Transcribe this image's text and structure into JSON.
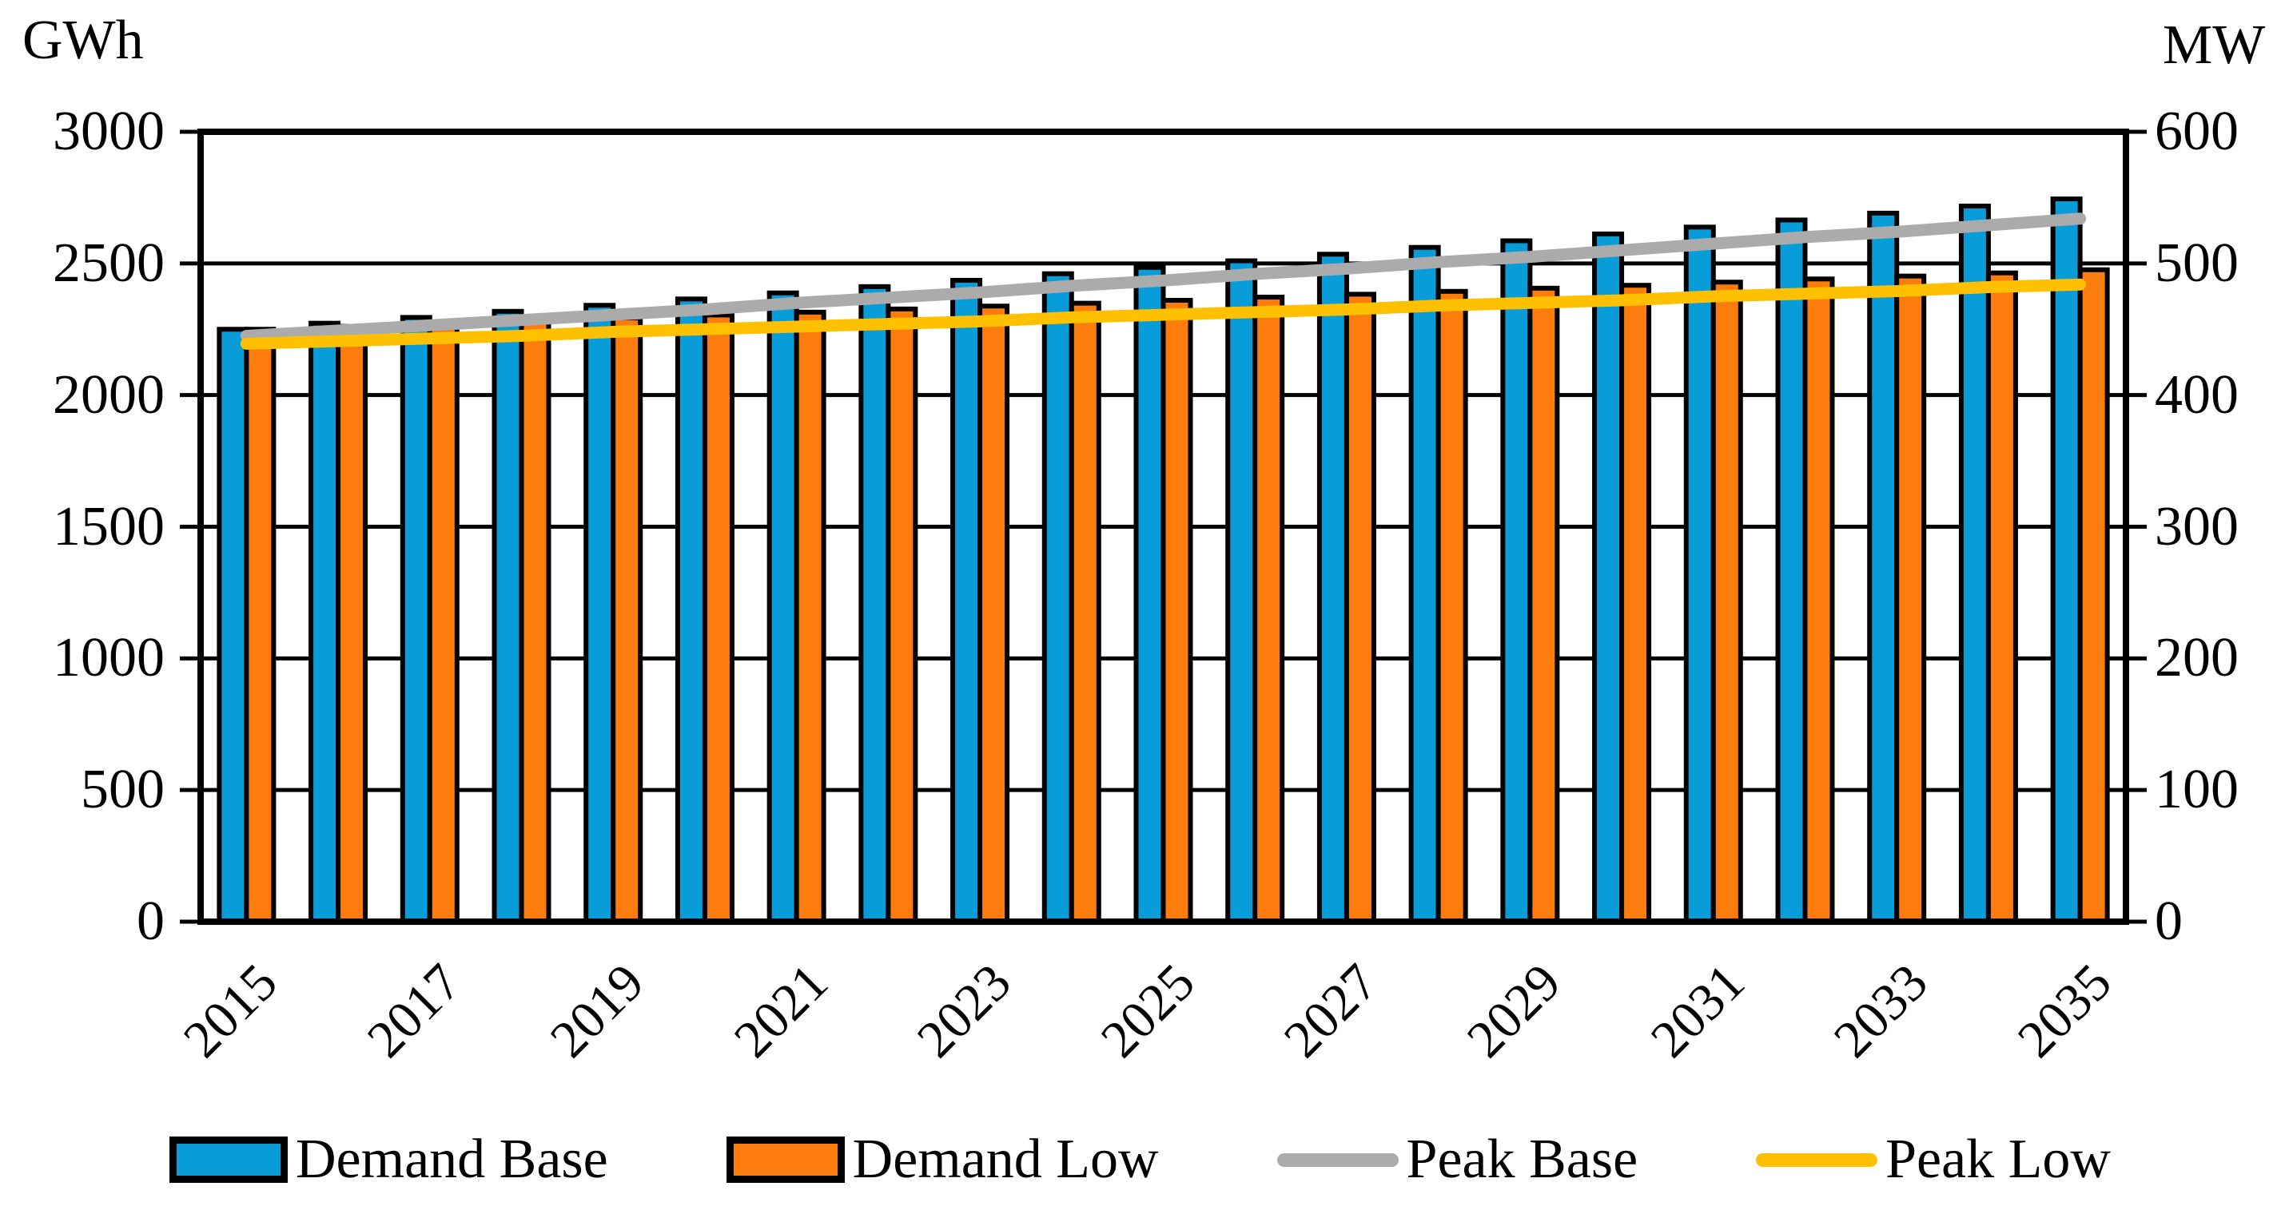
{
  "chart_data": {
    "type": "combo",
    "title": "",
    "x_years": [
      2015,
      2016,
      2017,
      2018,
      2019,
      2020,
      2021,
      2022,
      2023,
      2024,
      2025,
      2026,
      2027,
      2028,
      2029,
      2030,
      2031,
      2032,
      2033,
      2034,
      2035
    ],
    "x_tick_labels": [
      "2015",
      "2017",
      "2019",
      "2021",
      "2023",
      "2025",
      "2027",
      "2029",
      "2031",
      "2033",
      "2035"
    ],
    "left_axis": {
      "label": "GWh",
      "min": 0,
      "max": 3000,
      "tick_step": 500,
      "ticks": [
        "0",
        "500",
        "1000",
        "1500",
        "2000",
        "2500",
        "3000"
      ]
    },
    "right_axis": {
      "label": "MW",
      "min": 0,
      "max": 600,
      "tick_step": 100,
      "ticks": [
        "0",
        "100",
        "200",
        "300",
        "400",
        "500",
        "600"
      ]
    },
    "grid": "horizontal",
    "legend_position": "bottom",
    "series": [
      {
        "name": "Demand Base",
        "type": "bar",
        "axis": "left",
        "unit": "GWh",
        "color": "#089CD8",
        "values": [
          2250,
          2273,
          2295,
          2318,
          2341,
          2365,
          2388,
          2412,
          2436,
          2461,
          2485,
          2510,
          2535,
          2561,
          2586,
          2612,
          2638,
          2665,
          2691,
          2718,
          2745
        ]
      },
      {
        "name": "Demand Low",
        "type": "bar",
        "axis": "left",
        "unit": "GWh",
        "color": "#FC7D0E",
        "values": [
          2250,
          2261,
          2272,
          2282,
          2293,
          2304,
          2315,
          2327,
          2338,
          2349,
          2360,
          2372,
          2383,
          2394,
          2406,
          2417,
          2429,
          2441,
          2452,
          2464,
          2476
        ]
      },
      {
        "name": "Peak Base",
        "type": "line",
        "axis": "right",
        "unit": "MW",
        "color": "#ABABAB",
        "values": [
          445,
          449,
          453,
          457,
          461,
          465,
          470,
          474,
          478,
          483,
          487,
          492,
          496,
          501,
          505,
          510,
          515,
          520,
          524,
          529,
          534
        ]
      },
      {
        "name": "Peak Low",
        "type": "line",
        "axis": "right",
        "unit": "MW",
        "color": "#FFC000",
        "values": [
          439,
          441,
          443,
          445,
          448,
          450,
          452,
          454,
          456,
          459,
          461,
          463,
          465,
          468,
          470,
          472,
          475,
          477,
          479,
          482,
          484
        ]
      }
    ],
    "styles": {
      "frame_color": "#000000",
      "grid_color": "#000000",
      "bar_border_color": "#000000"
    }
  }
}
